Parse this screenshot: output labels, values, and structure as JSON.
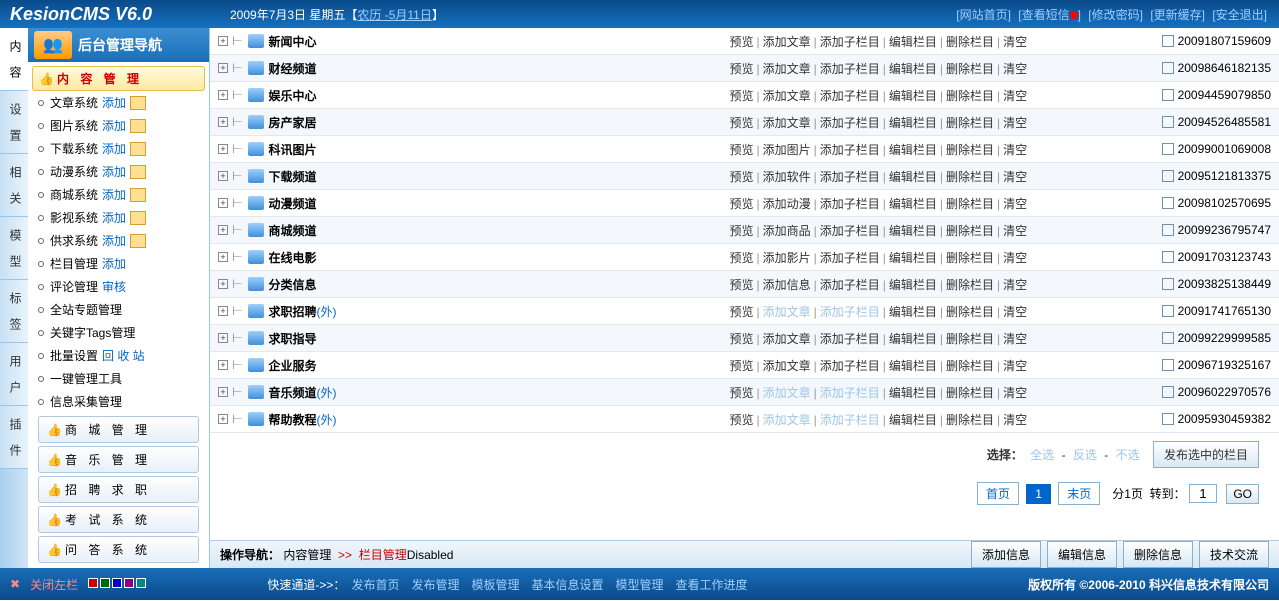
{
  "logo": "KesionCMS V6.0",
  "date": "2009年7月3日 星期五【",
  "lunar_link": "农历 -5月11日",
  "date_end": "】",
  "top": {
    "home": "[网站首页]",
    "msg": "[查看短信",
    "msg2": "]",
    "pwd": "[修改密码]",
    "cache": "[更新缓存]",
    "exit": "[安全退出]"
  },
  "nav_title": "后台管理导航",
  "vtabs": [
    "内 容",
    "设 置",
    "相 关",
    "模 型",
    "标 签",
    "用 户",
    "插 件"
  ],
  "sections": {
    "active": "内 容 管 理",
    "items": [
      {
        "t": "文章系统",
        "add": "添加",
        "pen": true
      },
      {
        "t": "图片系统",
        "add": "添加",
        "pen": true
      },
      {
        "t": "下载系统",
        "add": "添加",
        "pen": true
      },
      {
        "t": "动漫系统",
        "add": "添加",
        "pen": true
      },
      {
        "t": "商城系统",
        "add": "添加",
        "pen": true
      },
      {
        "t": "影视系统",
        "add": "添加",
        "pen": true
      },
      {
        "t": "供求系统",
        "add": "添加",
        "pen": true
      },
      {
        "t": "栏目管理",
        "add": "添加"
      },
      {
        "t": "评论管理",
        "add": "审核"
      },
      {
        "t": "全站专题管理"
      },
      {
        "t": "关键字Tags管理"
      },
      {
        "t": "批量设置",
        "add": "回 收 站"
      },
      {
        "t": "一键管理工具"
      },
      {
        "t": "信息采集管理"
      }
    ],
    "btns": [
      "商 城 管 理",
      "音 乐 管 理",
      "招 聘 求 职",
      "考 试 系 统",
      "问 答 系 统"
    ]
  },
  "rows": [
    {
      "t": "新闻中心",
      "ext": "",
      "acts": [
        "预览",
        "添加文章",
        "添加子栏目",
        "编辑栏目",
        "删除栏目",
        "清空"
      ],
      "dis": [],
      "code": "20091807159609"
    },
    {
      "t": "财经频道",
      "ext": "",
      "acts": [
        "预览",
        "添加文章",
        "添加子栏目",
        "编辑栏目",
        "删除栏目",
        "清空"
      ],
      "dis": [],
      "code": "20098646182135"
    },
    {
      "t": "娱乐中心",
      "ext": "",
      "acts": [
        "预览",
        "添加文章",
        "添加子栏目",
        "编辑栏目",
        "删除栏目",
        "清空"
      ],
      "dis": [],
      "code": "20094459079850"
    },
    {
      "t": "房产家居",
      "ext": "",
      "acts": [
        "预览",
        "添加文章",
        "添加子栏目",
        "编辑栏目",
        "删除栏目",
        "清空"
      ],
      "dis": [],
      "code": "20094526485581"
    },
    {
      "t": "科讯图片",
      "ext": "",
      "acts": [
        "预览",
        "添加图片",
        "添加子栏目",
        "编辑栏目",
        "删除栏目",
        "清空"
      ],
      "dis": [],
      "code": "20099001069008"
    },
    {
      "t": "下载频道",
      "ext": "",
      "acts": [
        "预览",
        "添加软件",
        "添加子栏目",
        "编辑栏目",
        "删除栏目",
        "清空"
      ],
      "dis": [],
      "code": "20095121813375"
    },
    {
      "t": "动漫频道",
      "ext": "",
      "acts": [
        "预览",
        "添加动漫",
        "添加子栏目",
        "编辑栏目",
        "删除栏目",
        "清空"
      ],
      "dis": [],
      "code": "20098102570695"
    },
    {
      "t": "商城频道",
      "ext": "",
      "acts": [
        "预览",
        "添加商品",
        "添加子栏目",
        "编辑栏目",
        "删除栏目",
        "清空"
      ],
      "dis": [],
      "code": "20099236795747"
    },
    {
      "t": "在线电影",
      "ext": "",
      "acts": [
        "预览",
        "添加影片",
        "添加子栏目",
        "编辑栏目",
        "删除栏目",
        "清空"
      ],
      "dis": [],
      "code": "20091703123743"
    },
    {
      "t": "分类信息",
      "ext": "",
      "acts": [
        "预览",
        "添加信息",
        "添加子栏目",
        "编辑栏目",
        "删除栏目",
        "清空"
      ],
      "dis": [],
      "code": "20093825138449"
    },
    {
      "t": "求职招聘",
      "ext": "(外)",
      "acts": [
        "预览",
        "添加文章",
        "添加子栏目",
        "编辑栏目",
        "删除栏目",
        "清空"
      ],
      "dis": [
        1,
        2
      ],
      "code": "20091741765130"
    },
    {
      "t": "求职指导",
      "ext": "",
      "acts": [
        "预览",
        "添加文章",
        "添加子栏目",
        "编辑栏目",
        "删除栏目",
        "清空"
      ],
      "dis": [],
      "code": "20099229999585"
    },
    {
      "t": "企业服务",
      "ext": "",
      "acts": [
        "预览",
        "添加文章",
        "添加子栏目",
        "编辑栏目",
        "删除栏目",
        "清空"
      ],
      "dis": [],
      "code": "20096719325167"
    },
    {
      "t": "音乐频道",
      "ext": "(外)",
      "acts": [
        "预览",
        "添加文章",
        "添加子栏目",
        "编辑栏目",
        "删除栏目",
        "清空"
      ],
      "dis": [
        1,
        2
      ],
      "code": "20096022970576"
    },
    {
      "t": "帮助教程",
      "ext": "(外)",
      "acts": [
        "预览",
        "添加文章",
        "添加子栏目",
        "编辑栏目",
        "删除栏目",
        "清空"
      ],
      "dis": [
        1,
        2
      ],
      "code": "20095930459382"
    }
  ],
  "sel": {
    "label": "选择：",
    "all": "全选",
    "inv": "反选",
    "none": "不选",
    "pub": "发布选中的栏目"
  },
  "pager": {
    "first": "首页",
    "p1": "1",
    "last": "末页",
    "total": "分1页",
    "goto": "转到：",
    "val": "1",
    "go": "GO"
  },
  "crumb": {
    "label": "操作导航：",
    "p1": "内容管理",
    "arr": ">>",
    "p2": "栏目管理",
    "dis": "Disabled"
  },
  "bbtns": {
    "add": "添加信息",
    "edit": "编辑信息",
    "del": "删除信息",
    "tech": "技术交流"
  },
  "footer": {
    "close": "关闭左栏",
    "quick": "快速通道->>：",
    "links": [
      "发布首页",
      "发布管理",
      "模板管理",
      "基本信息设置",
      "模型管理",
      "查看工作进度"
    ],
    "copy": "版权所有 ©2006-2010 科兴信息技术有限公司"
  },
  "colors": [
    "#c00",
    "#060",
    "#00c",
    "#808",
    "#088"
  ]
}
